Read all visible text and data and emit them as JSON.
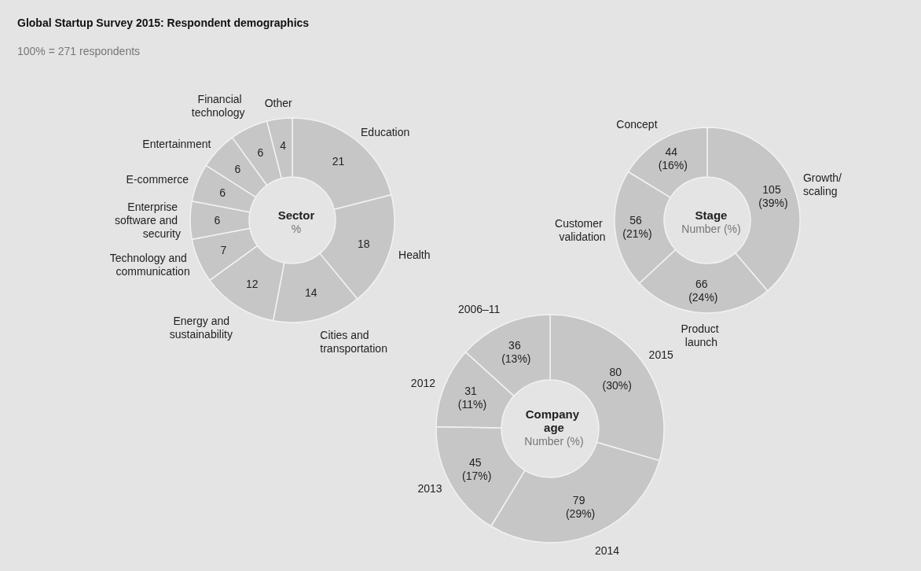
{
  "chart_data": [
    {
      "type": "donut",
      "title": "Sector",
      "subtitle": "%",
      "annotations": [
        "Global Startup Survey 2015: Respondent demographics",
        "100% = 271 respondents"
      ],
      "categories": [
        "Education",
        "Health",
        "Cities and transportation",
        "Energy and sustainability",
        "Technology and communication",
        "Enterprise software and security",
        "E-commerce",
        "Entertainment",
        "Financial technology",
        "Other"
      ],
      "values": [
        21,
        18,
        14,
        12,
        7,
        6,
        6,
        6,
        6,
        4
      ],
      "color": "#c6c6c6",
      "data_labels": true
    },
    {
      "type": "donut",
      "title": "Stage",
      "subtitle": "Number (%)",
      "categories": [
        "Growth/ scaling",
        "Product launch",
        "Customer validation",
        "Concept"
      ],
      "values": [
        105,
        66,
        56,
        44
      ],
      "value_labels": [
        "105 (39%)",
        "66 (24%)",
        "56 (21%)",
        "44 (16%)"
      ],
      "color": "#c6c6c6"
    },
    {
      "type": "donut",
      "title": "Company age",
      "subtitle": "Number (%)",
      "categories": [
        "2015",
        "2014",
        "2013",
        "2012",
        "2006–11"
      ],
      "values": [
        80,
        79,
        45,
        31,
        36
      ],
      "value_labels": [
        "80 (30%)",
        "79 (29%)",
        "45 (17%)",
        "31 (11%)",
        "36 (13%)"
      ],
      "color": "#c6c6c6"
    }
  ]
}
